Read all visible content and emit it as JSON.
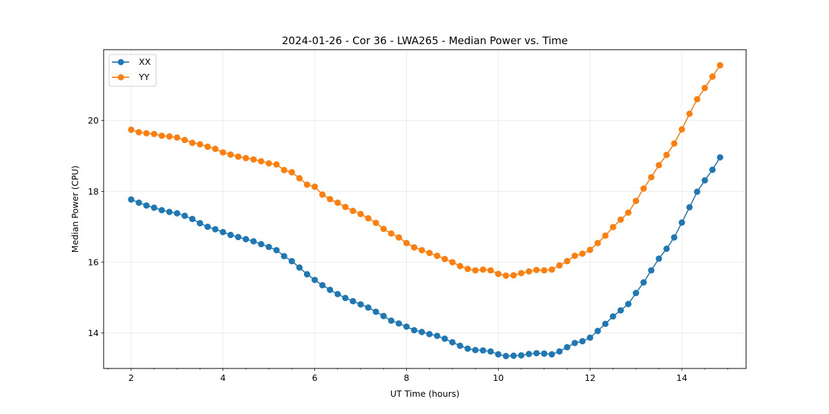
{
  "chart_data": {
    "type": "line",
    "title": "2024-01-26 - Cor 36 - LWA265 - Median Power vs. Time",
    "xlabel": "UT Time (hours)",
    "ylabel": "Median Power (CPU)",
    "xlim": [
      1.4,
      15.4
    ],
    "ylim": [
      13.0,
      22.0
    ],
    "xticks": [
      2,
      4,
      6,
      8,
      10,
      12,
      14
    ],
    "yticks": [
      14,
      16,
      18,
      20
    ],
    "xtick_labels": [
      "2",
      "4",
      "6",
      "8",
      "10",
      "12",
      "14"
    ],
    "ytick_labels": [
      "14",
      "16",
      "18",
      "20"
    ],
    "grid": true,
    "legend_position": "top-left",
    "x": [
      2.0,
      2.167,
      2.333,
      2.5,
      2.667,
      2.833,
      3.0,
      3.167,
      3.333,
      3.5,
      3.667,
      3.833,
      4.0,
      4.167,
      4.333,
      4.5,
      4.667,
      4.833,
      5.0,
      5.167,
      5.333,
      5.5,
      5.667,
      5.833,
      6.0,
      6.167,
      6.333,
      6.5,
      6.667,
      6.833,
      7.0,
      7.167,
      7.333,
      7.5,
      7.667,
      7.833,
      8.0,
      8.167,
      8.333,
      8.5,
      8.667,
      8.833,
      9.0,
      9.167,
      9.333,
      9.5,
      9.667,
      9.833,
      10.0,
      10.167,
      10.333,
      10.5,
      10.667,
      10.833,
      11.0,
      11.167,
      11.333,
      11.5,
      11.667,
      11.833,
      12.0,
      12.167,
      12.333,
      12.5,
      12.667,
      12.833,
      13.0,
      13.167,
      13.333,
      13.5,
      13.667,
      13.833,
      14.0,
      14.167,
      14.333,
      14.5,
      14.667,
      14.833
    ],
    "series": [
      {
        "name": "XX",
        "color": "#1f77b4",
        "values": [
          17.77,
          17.68,
          17.6,
          17.54,
          17.47,
          17.42,
          17.38,
          17.31,
          17.22,
          17.1,
          17.0,
          16.93,
          16.85,
          16.77,
          16.71,
          16.65,
          16.59,
          16.51,
          16.43,
          16.34,
          16.17,
          16.03,
          15.85,
          15.66,
          15.5,
          15.35,
          15.22,
          15.1,
          14.99,
          14.9,
          14.81,
          14.72,
          14.6,
          14.48,
          14.35,
          14.27,
          14.18,
          14.08,
          14.03,
          13.97,
          13.92,
          13.84,
          13.74,
          13.64,
          13.56,
          13.52,
          13.51,
          13.48,
          13.4,
          13.35,
          13.36,
          13.37,
          13.41,
          13.43,
          13.42,
          13.4,
          13.48,
          13.6,
          13.72,
          13.77,
          13.87,
          14.06,
          14.26,
          14.47,
          14.64,
          14.82,
          15.13,
          15.43,
          15.77,
          16.1,
          16.38,
          16.7,
          17.12,
          17.55,
          17.99,
          18.31,
          18.61,
          18.96
        ]
      },
      {
        "name": "YY",
        "color": "#ff7f0e",
        "values": [
          19.74,
          19.67,
          19.64,
          19.62,
          19.57,
          19.55,
          19.52,
          19.45,
          19.37,
          19.33,
          19.26,
          19.2,
          19.1,
          19.04,
          18.98,
          18.94,
          18.9,
          18.85,
          18.79,
          18.76,
          18.6,
          18.54,
          18.37,
          18.19,
          18.13,
          17.91,
          17.78,
          17.68,
          17.56,
          17.45,
          17.36,
          17.24,
          17.11,
          16.94,
          16.81,
          16.7,
          16.54,
          16.42,
          16.34,
          16.26,
          16.18,
          16.09,
          16.0,
          15.89,
          15.81,
          15.77,
          15.79,
          15.77,
          15.67,
          15.62,
          15.63,
          15.69,
          15.74,
          15.78,
          15.77,
          15.79,
          15.91,
          16.03,
          16.18,
          16.24,
          16.35,
          16.54,
          16.75,
          16.99,
          17.2,
          17.4,
          17.73,
          18.08,
          18.4,
          18.74,
          19.03,
          19.35,
          19.75,
          20.19,
          20.6,
          20.92,
          21.24,
          21.56
        ]
      }
    ]
  }
}
